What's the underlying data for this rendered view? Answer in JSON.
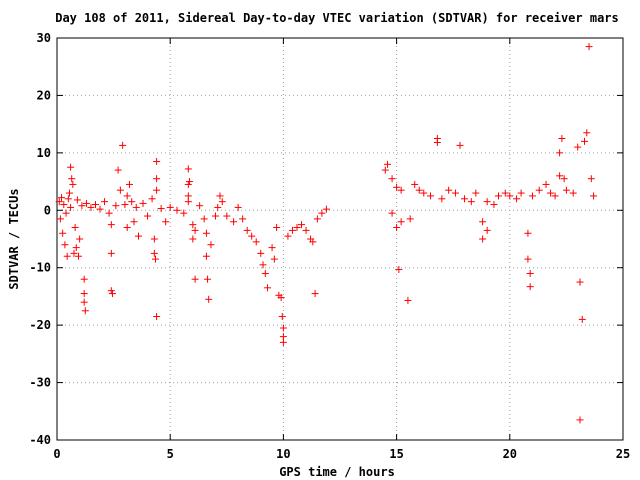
{
  "chart_data": {
    "type": "scatter",
    "title": "Day 108 of 2011, Sidereal Day-to-day VTEC variation (SDTVAR) for receiver mars",
    "xlabel": "GPS time / hours",
    "ylabel": "SDTVAR / TECUs",
    "xlim": [
      0,
      25
    ],
    "ylim": [
      -40,
      30
    ],
    "xticks": [
      0,
      5,
      10,
      15,
      20,
      25
    ],
    "yticks": [
      -40,
      -30,
      -20,
      -10,
      0,
      10,
      20,
      30
    ],
    "xtick_labels": [
      "0",
      "5",
      "10",
      "15",
      "20",
      "25"
    ],
    "ytick_labels": [
      "-40",
      "-30",
      "-20",
      "-10",
      "0",
      "10",
      "20",
      "30"
    ],
    "grid": true,
    "marker": "plus",
    "color": "#ff0000",
    "series": [
      {
        "points": [
          [
            0.1,
            1.5
          ],
          [
            0.2,
            2.2
          ],
          [
            0.3,
            1.0
          ],
          [
            0.4,
            -0.5
          ],
          [
            0.5,
            2.0
          ],
          [
            0.6,
            0.5
          ],
          [
            0.7,
            4.5
          ],
          [
            0.8,
            -3.0
          ],
          [
            0.9,
            1.8
          ],
          [
            1.0,
            -5.0
          ],
          [
            0.15,
            -1.5
          ],
          [
            0.25,
            -4.0
          ],
          [
            0.35,
            -6.0
          ],
          [
            0.45,
            -8.0
          ],
          [
            0.55,
            3.0
          ],
          [
            0.65,
            5.5
          ],
          [
            0.6,
            7.5
          ],
          [
            0.75,
            -7.5
          ],
          [
            0.85,
            -6.5
          ],
          [
            0.95,
            -8.0
          ],
          [
            1.2,
            -12.0
          ],
          [
            1.2,
            -14.5
          ],
          [
            1.2,
            -16.0
          ],
          [
            1.25,
            -17.5
          ],
          [
            1.1,
            0.8
          ],
          [
            1.3,
            1.2
          ],
          [
            1.5,
            0.5
          ],
          [
            1.7,
            1.0
          ],
          [
            1.9,
            0.2
          ],
          [
            2.1,
            1.5
          ],
          [
            2.3,
            -0.5
          ],
          [
            2.4,
            -2.5
          ],
          [
            2.4,
            -7.5
          ],
          [
            2.4,
            -14.0
          ],
          [
            2.45,
            -14.5
          ],
          [
            2.6,
            0.8
          ],
          [
            2.7,
            7.0
          ],
          [
            2.9,
            11.3
          ],
          [
            2.8,
            3.5
          ],
          [
            3.0,
            1.0
          ],
          [
            3.1,
            2.5
          ],
          [
            3.2,
            4.5
          ],
          [
            3.3,
            1.5
          ],
          [
            3.1,
            -3.0
          ],
          [
            3.4,
            -2.0
          ],
          [
            3.5,
            0.5
          ],
          [
            3.6,
            -4.5
          ],
          [
            3.8,
            1.2
          ],
          [
            4.0,
            -1.0
          ],
          [
            4.2,
            2.0
          ],
          [
            4.3,
            -5.0
          ],
          [
            4.3,
            -7.5
          ],
          [
            4.35,
            -8.5
          ],
          [
            4.4,
            8.5
          ],
          [
            4.4,
            5.5
          ],
          [
            4.4,
            3.5
          ],
          [
            4.4,
            -18.5
          ],
          [
            4.6,
            0.3
          ],
          [
            4.8,
            -2.0
          ],
          [
            5.0,
            0.5
          ],
          [
            5.3,
            0.0
          ],
          [
            5.6,
            -0.5
          ],
          [
            5.8,
            1.5
          ],
          [
            5.8,
            2.5
          ],
          [
            5.8,
            4.5
          ],
          [
            5.8,
            7.2
          ],
          [
            5.85,
            5.0
          ],
          [
            6.0,
            -2.5
          ],
          [
            6.0,
            -5.0
          ],
          [
            6.1,
            -3.5
          ],
          [
            6.1,
            -12.0
          ],
          [
            6.3,
            0.8
          ],
          [
            6.5,
            -1.5
          ],
          [
            6.6,
            -4.0
          ],
          [
            6.6,
            -8.0
          ],
          [
            6.65,
            -12.0
          ],
          [
            6.7,
            -15.5
          ],
          [
            6.8,
            -6.0
          ],
          [
            7.0,
            -1.0
          ],
          [
            7.1,
            0.5
          ],
          [
            7.2,
            2.5
          ],
          [
            7.3,
            1.5
          ],
          [
            7.5,
            -1.0
          ],
          [
            7.8,
            -2.0
          ],
          [
            8.0,
            0.5
          ],
          [
            8.2,
            -1.5
          ],
          [
            8.4,
            -3.5
          ],
          [
            8.6,
            -4.5
          ],
          [
            8.8,
            -5.5
          ],
          [
            9.0,
            -7.5
          ],
          [
            9.1,
            -9.5
          ],
          [
            9.2,
            -11.0
          ],
          [
            9.3,
            -13.5
          ],
          [
            9.5,
            -6.5
          ],
          [
            9.6,
            -8.5
          ],
          [
            9.7,
            -3.0
          ],
          [
            9.8,
            -14.8
          ],
          [
            9.9,
            -15.2
          ],
          [
            9.95,
            -18.5
          ],
          [
            10.0,
            -20.5
          ],
          [
            10.0,
            -22.0
          ],
          [
            10.0,
            -23.0
          ],
          [
            10.2,
            -4.5
          ],
          [
            10.4,
            -3.5
          ],
          [
            10.6,
            -3.0
          ],
          [
            10.8,
            -2.5
          ],
          [
            11.0,
            -3.5
          ],
          [
            11.2,
            -5.0
          ],
          [
            11.3,
            -5.5
          ],
          [
            11.4,
            -14.5
          ],
          [
            11.5,
            -1.5
          ],
          [
            11.7,
            -0.5
          ],
          [
            11.9,
            0.2
          ],
          [
            14.5,
            7.0
          ],
          [
            14.6,
            8.0
          ],
          [
            14.8,
            5.5
          ],
          [
            15.0,
            4.0
          ],
          [
            15.2,
            3.5
          ],
          [
            14.8,
            -0.5
          ],
          [
            15.0,
            -3.0
          ],
          [
            15.1,
            -10.3
          ],
          [
            15.2,
            -2.0
          ],
          [
            15.5,
            -15.7
          ],
          [
            15.6,
            -1.5
          ],
          [
            15.8,
            4.5
          ],
          [
            16.0,
            3.5
          ],
          [
            16.2,
            3.0
          ],
          [
            16.5,
            2.5
          ],
          [
            16.8,
            12.5
          ],
          [
            16.8,
            11.8
          ],
          [
            17.0,
            2.0
          ],
          [
            17.3,
            3.5
          ],
          [
            17.6,
            3.0
          ],
          [
            17.8,
            11.3
          ],
          [
            18.0,
            2.0
          ],
          [
            18.3,
            1.5
          ],
          [
            18.5,
            3.0
          ],
          [
            18.8,
            -5.0
          ],
          [
            18.8,
            -2.0
          ],
          [
            19.0,
            -3.5
          ],
          [
            19.0,
            1.5
          ],
          [
            19.3,
            1.0
          ],
          [
            19.5,
            2.5
          ],
          [
            19.8,
            3.0
          ],
          [
            20.0,
            2.5
          ],
          [
            20.3,
            2.0
          ],
          [
            20.5,
            3.0
          ],
          [
            20.8,
            -4.0
          ],
          [
            20.8,
            -8.5
          ],
          [
            20.9,
            -11.0
          ],
          [
            20.9,
            -13.3
          ],
          [
            21.0,
            2.5
          ],
          [
            21.3,
            3.5
          ],
          [
            21.6,
            4.5
          ],
          [
            21.8,
            3.0
          ],
          [
            22.0,
            2.5
          ],
          [
            22.2,
            6.0
          ],
          [
            22.2,
            10.0
          ],
          [
            22.3,
            12.5
          ],
          [
            22.4,
            5.5
          ],
          [
            22.5,
            3.5
          ],
          [
            22.8,
            3.0
          ],
          [
            23.0,
            11.0
          ],
          [
            23.1,
            -12.5
          ],
          [
            23.2,
            -19.0
          ],
          [
            23.1,
            -36.5
          ],
          [
            23.3,
            12.0
          ],
          [
            23.4,
            13.5
          ],
          [
            23.5,
            28.5
          ],
          [
            23.6,
            5.5
          ],
          [
            23.7,
            2.5
          ]
        ]
      }
    ]
  }
}
